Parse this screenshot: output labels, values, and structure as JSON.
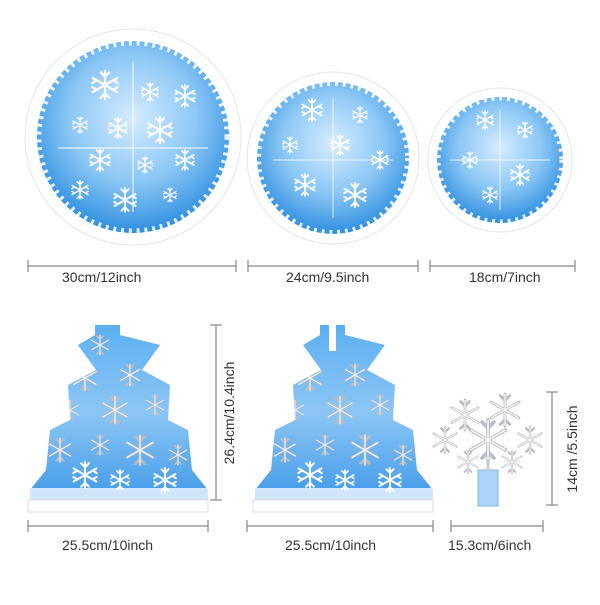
{
  "colors": {
    "sky_light": "#d6ecff",
    "sky_mid": "#7ec0f4",
    "sky_deep": "#2f8fe0",
    "frost": "#ffffff",
    "silver": "#c9ccd2",
    "line": "#888888",
    "text": "#333333"
  },
  "items": {
    "round_large": {
      "label": "30cm/12inch"
    },
    "round_medium": {
      "label": "24cm/9.5inch"
    },
    "round_small": {
      "label": "18cm/7inch"
    },
    "tree_left": {
      "width_label": "25.5cm/10inch",
      "height_label": "26.4cm/10.4inch"
    },
    "tree_right": {
      "width_label": "25.5cm/10inch"
    },
    "snowflake_topper": {
      "width_label": "15.3cm/6inch",
      "height_label": "14cm /5.5inch"
    }
  },
  "icons": [
    "snowflake-icon"
  ]
}
